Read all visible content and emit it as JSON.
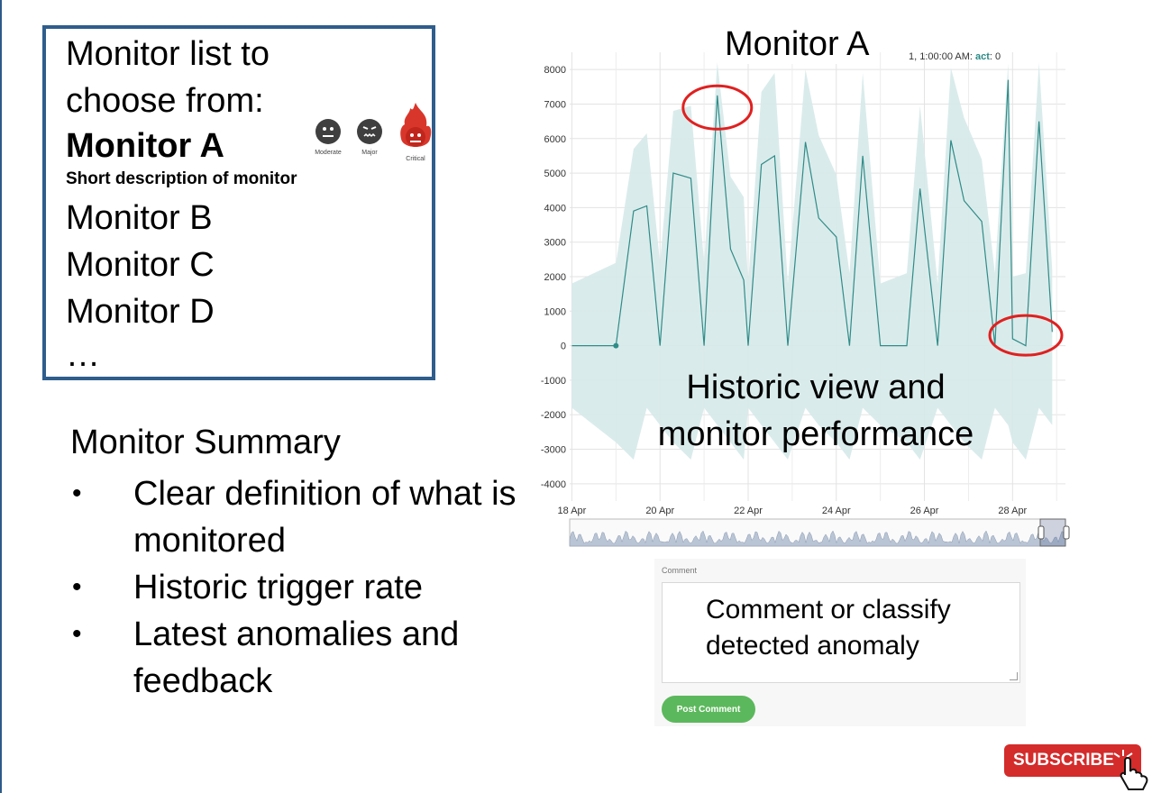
{
  "monitor_list": {
    "line1": "Monitor list to",
    "line2": "choose from:",
    "selected": "Monitor A",
    "selected_description": "Short description of monitor",
    "items": [
      "Monitor B",
      "Monitor C",
      "Monitor D"
    ],
    "more": "…",
    "severity_levels": [
      {
        "label": "Moderate",
        "icon": "moderate-face-icon"
      },
      {
        "label": "Major",
        "icon": "major-face-icon"
      },
      {
        "label": "Critical",
        "icon": "critical-fire-icon"
      }
    ]
  },
  "summary": {
    "title": "Monitor Summary",
    "bullet": "•",
    "items": [
      "Clear definition of what is monitored",
      "Historic trigger rate",
      "Latest anomalies and feedback"
    ]
  },
  "chart": {
    "title": "Monitor A",
    "tooltip_prefix": "1, 1:00:00 AM: ",
    "tooltip_series": "act",
    "tooltip_value": ": 0",
    "overlay_caption": "Historic view and monitor performance"
  },
  "chart_data": {
    "type": "line",
    "x_dates": [
      "Apr 18",
      "Apr 18.5",
      "Apr 19",
      "Apr 19.4",
      "Apr 19.7",
      "Apr 20",
      "Apr 20.3",
      "Apr 20.7",
      "Apr 21",
      "Apr 21.3",
      "Apr 21.6",
      "Apr 21.9",
      "Apr 22",
      "Apr 22.3",
      "Apr 22.6",
      "Apr 22.9",
      "Apr 23.3",
      "Apr 23.6",
      "Apr 24",
      "Apr 24.3",
      "Apr 24.6",
      "Apr 25",
      "Apr 25.6",
      "Apr 25.9",
      "Apr 26.3",
      "Apr 26.6",
      "Apr 26.9",
      "Apr 27.3",
      "Apr 27.6",
      "Apr 27.9",
      "Apr 28",
      "Apr 28.3",
      "Apr 28.6",
      "Apr 28.9"
    ],
    "series": [
      {
        "values": [
          0,
          0,
          0,
          3900,
          4050,
          0,
          5000,
          4850,
          0,
          7250,
          2800,
          1900,
          0,
          5250,
          5500,
          0,
          5900,
          3700,
          3150,
          0,
          5500,
          0,
          0,
          4550,
          0,
          5950,
          4200,
          3600,
          0,
          7700,
          200,
          0,
          6500,
          400
        ]
      }
    ],
    "x_ticks": [
      "18 Apr",
      "20 Apr",
      "22 Apr",
      "24 Apr",
      "26 Apr",
      "28 Apr"
    ],
    "y_ticks": [
      8000,
      7000,
      6000,
      5000,
      4000,
      3000,
      2000,
      1000,
      0,
      -1000,
      -2000,
      -3000,
      -4000
    ],
    "ylim": [
      -4500,
      8500
    ],
    "band": "expected range (shaded)",
    "line_color": "#2f8c88",
    "band_color": "#d6e9e9",
    "annotations": [
      {
        "shape": "red-ellipse",
        "near": "peak Apr 21"
      },
      {
        "shape": "red-ellipse",
        "near": "drop Apr 28"
      }
    ]
  },
  "comment": {
    "label": "Comment",
    "text": "Comment or classify detected anomaly",
    "button": "Post Comment"
  },
  "subscribe": {
    "label": "SUBSCRIBE",
    "icon": "hand-pointer-icon"
  }
}
